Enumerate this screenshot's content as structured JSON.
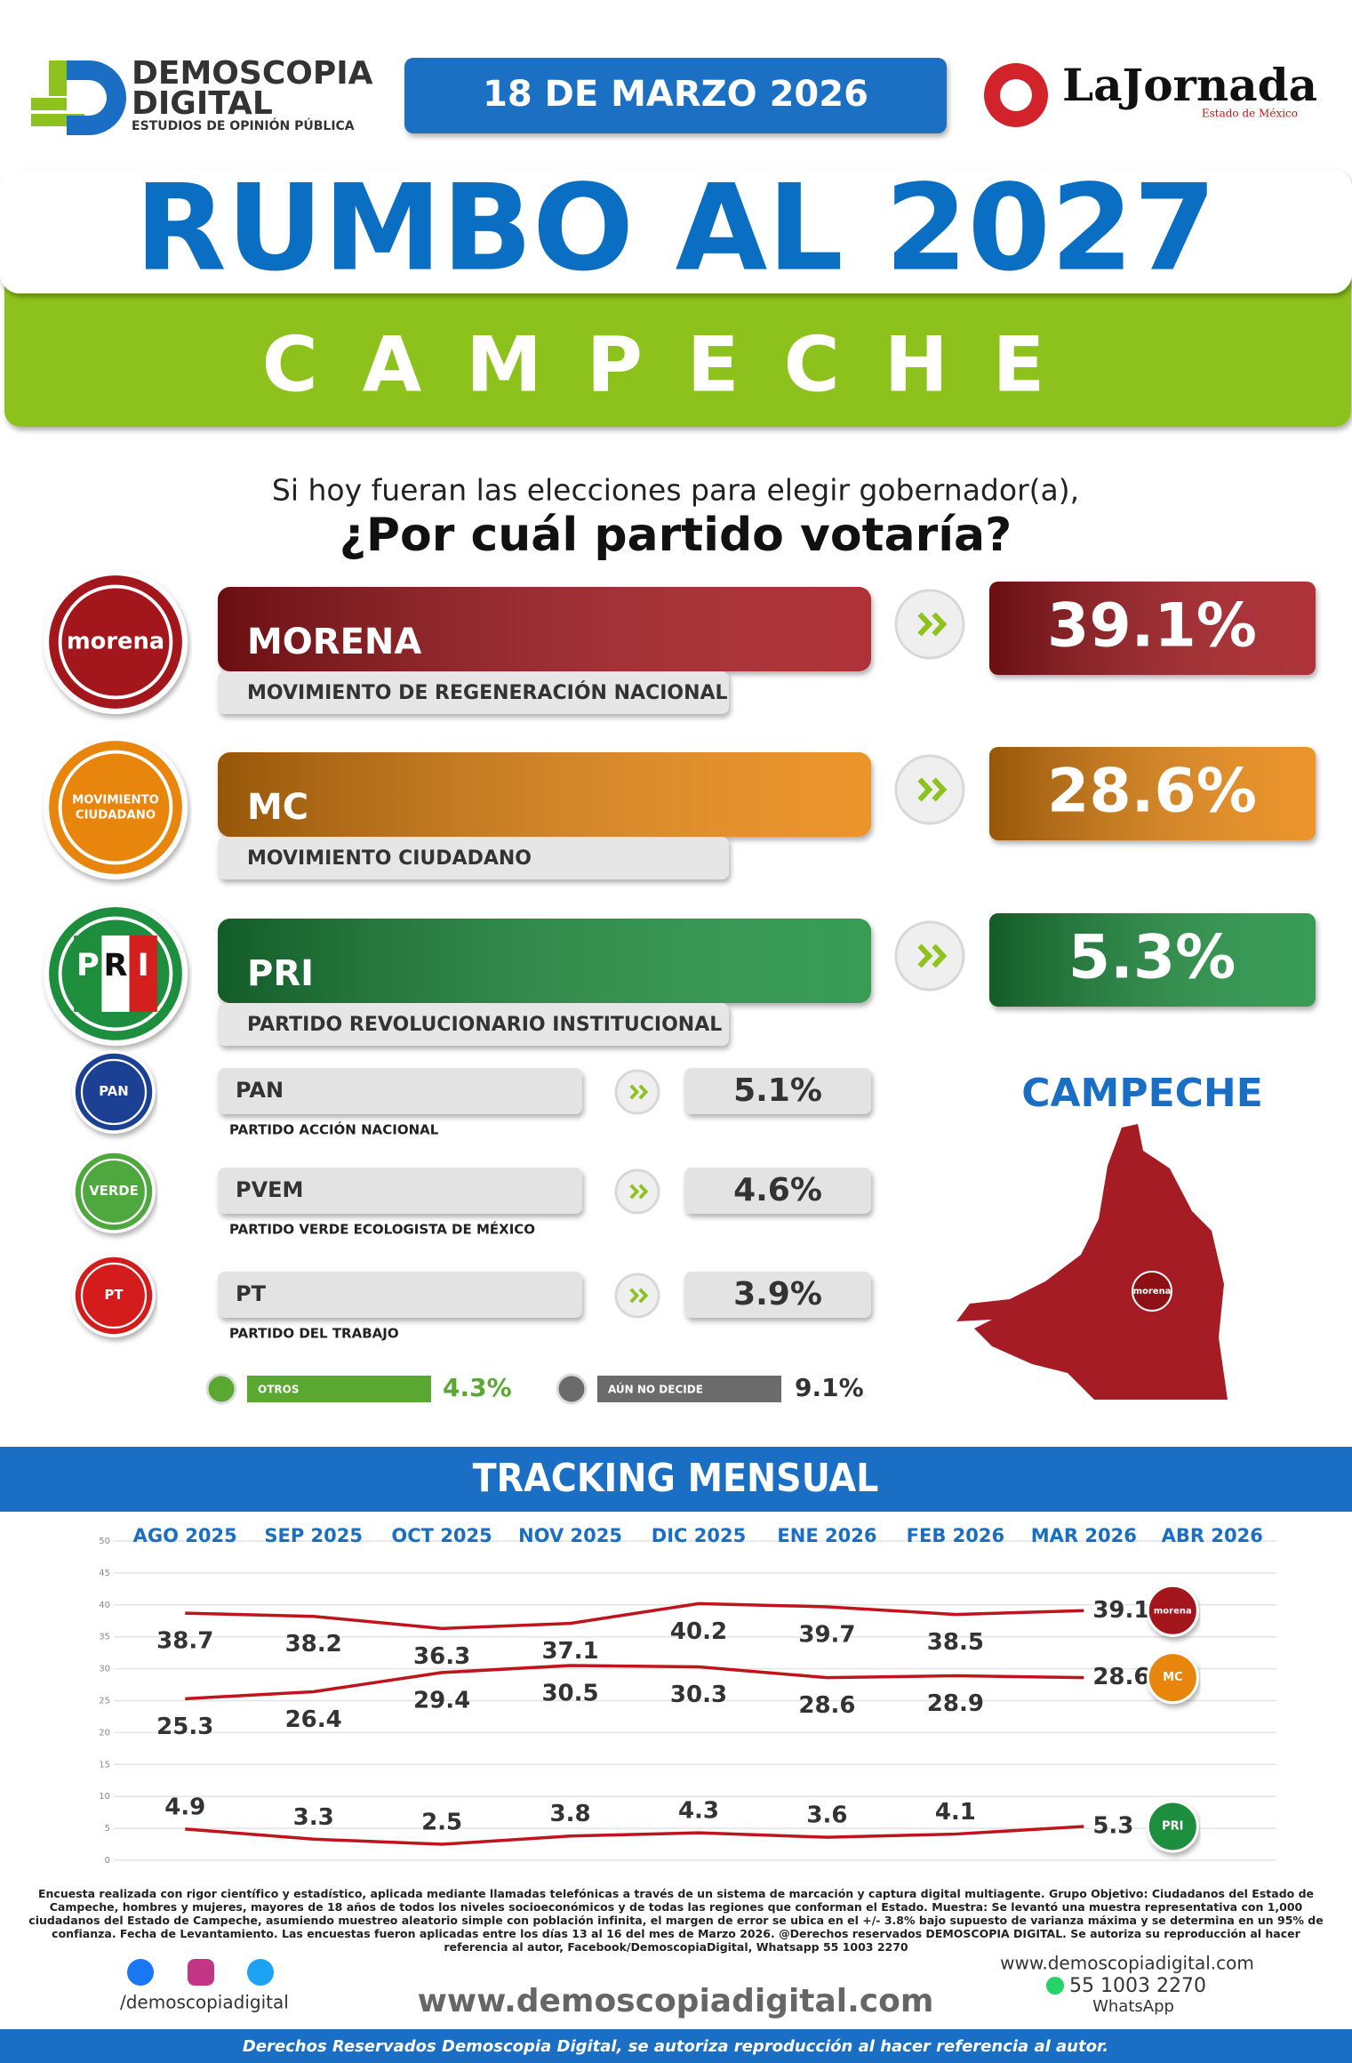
{
  "header": {
    "brand": "DEMOSCOPIA",
    "brand2": "DIGITAL",
    "brand_sub": "ESTUDIOS DE OPINIÓN PÚBLICA",
    "date": "18 DE MARZO 2026",
    "partner": "LaJornada",
    "partner_sub": "Estado de México",
    "title": "RUMBO AL 2027",
    "state": "CAMPECHE"
  },
  "question": {
    "line1": "Si hoy fueran las elecciones para elegir gobernador(a),",
    "line2": "¿Por cuál partido votaría?"
  },
  "logos": {
    "morena": "morena",
    "mc1": "MOVIMIENTO",
    "mc2": "CIUDADANO",
    "pri": [
      "P",
      "R",
      "I"
    ],
    "pan": "PAN",
    "pvem": "VERDE",
    "pt": "PT"
  },
  "chart_data": [
    {
      "type": "bar",
      "categories": [
        "MORENA",
        "MC",
        "PRI",
        "PAN",
        "PVEM",
        "PT",
        "OTROS",
        "AÚN NO DECIDE"
      ],
      "full_names": [
        "MOVIMIENTO DE REGENERACIÓN NACIONAL",
        "MOVIMIENTO CIUDADANO",
        "PARTIDO REVOLUCIONARIO INSTITUCIONAL",
        "PARTIDO ACCIÓN NACIONAL",
        "PARTIDO VERDE ECOLOGISTA DE MÉXICO",
        "PARTIDO DEL TRABAJO",
        null,
        null
      ],
      "values": [
        39.1,
        28.6,
        5.3,
        5.1,
        4.6,
        3.9,
        4.3,
        9.1
      ],
      "value_labels": [
        "39.1%",
        "28.6%",
        "5.3%",
        "5.1%",
        "4.6%",
        "3.9%",
        "4.3%",
        "9.1%"
      ],
      "colors": [
        "#a3131b",
        "#e8850f",
        "#1f8e3c",
        "#1c3f94",
        "#4fa83d",
        "#d41f1f",
        "#5aa831",
        "#6b6b6b"
      ]
    },
    {
      "type": "line",
      "title": "TRACKING MENSUAL",
      "categories": [
        "AGO 2025",
        "SEP 2025",
        "OCT 2025",
        "NOV 2025",
        "DIC 2025",
        "ENE 2026",
        "FEB 2026",
        "MAR 2026",
        "ABR 2026"
      ],
      "series": [
        {
          "name": "MORENA",
          "color": "#c0141c",
          "values": [
            38.7,
            38.2,
            36.3,
            37.1,
            40.2,
            39.7,
            38.5,
            39.1,
            null
          ]
        },
        {
          "name": "MC",
          "color": "#c0141c",
          "values": [
            25.3,
            26.4,
            29.4,
            30.5,
            30.3,
            28.6,
            28.9,
            28.6,
            null
          ]
        },
        {
          "name": "PRI",
          "color": "#c0141c",
          "values": [
            4.9,
            3.3,
            2.5,
            3.8,
            4.3,
            3.6,
            4.1,
            5.3,
            null
          ]
        }
      ],
      "ylim": [
        0,
        50
      ],
      "yticks": [
        0,
        5,
        10,
        15,
        20,
        25,
        30,
        35,
        40,
        45,
        50
      ],
      "grid": true
    }
  ],
  "footer": {
    "disclaimer": "Encuesta realizada con rigor científico y estadístico, aplicada mediante llamadas telefónicas a través de un sistema de marcación y captura digital multiagente. Grupo Objetivo: Ciudadanos del Estado de Campeche, hombres y mujeres, mayores de 18 años de todos los niveles socioeconómicos y de todas las regiones que conforman el Estado. Muestra: Se levantó una muestra representativa con 1,000 ciudadanos del Estado de Campeche, asumiendo muestreo aleatorio simple con población infinita, el margen de error se ubica en el +/- 3.8% bajo supuesto de varianza máxima y se determina en un 95% de confianza. Fecha de Levantamiento. Las encuestas fueron aplicadas entre los días 13 al 16 del mes de Marzo 2026. @Derechos reservados DEMOSCOPIA DIGITAL. Se autoriza su reproducción al hacer referencia al autor, Facebook/DemoscopiaDigital, Whatsapp 55 1003 2270",
    "social": "/demoscopiadigital",
    "website": "www.demoscopiadigital.com",
    "contact_web": "www.demoscopiadigital.com",
    "phone": "55 1003 2270",
    "whatsapp": "WhatsApp",
    "rights": "Derechos Reservados Demoscopia Digital, se autoriza reproducción al hacer referencia al autor."
  }
}
